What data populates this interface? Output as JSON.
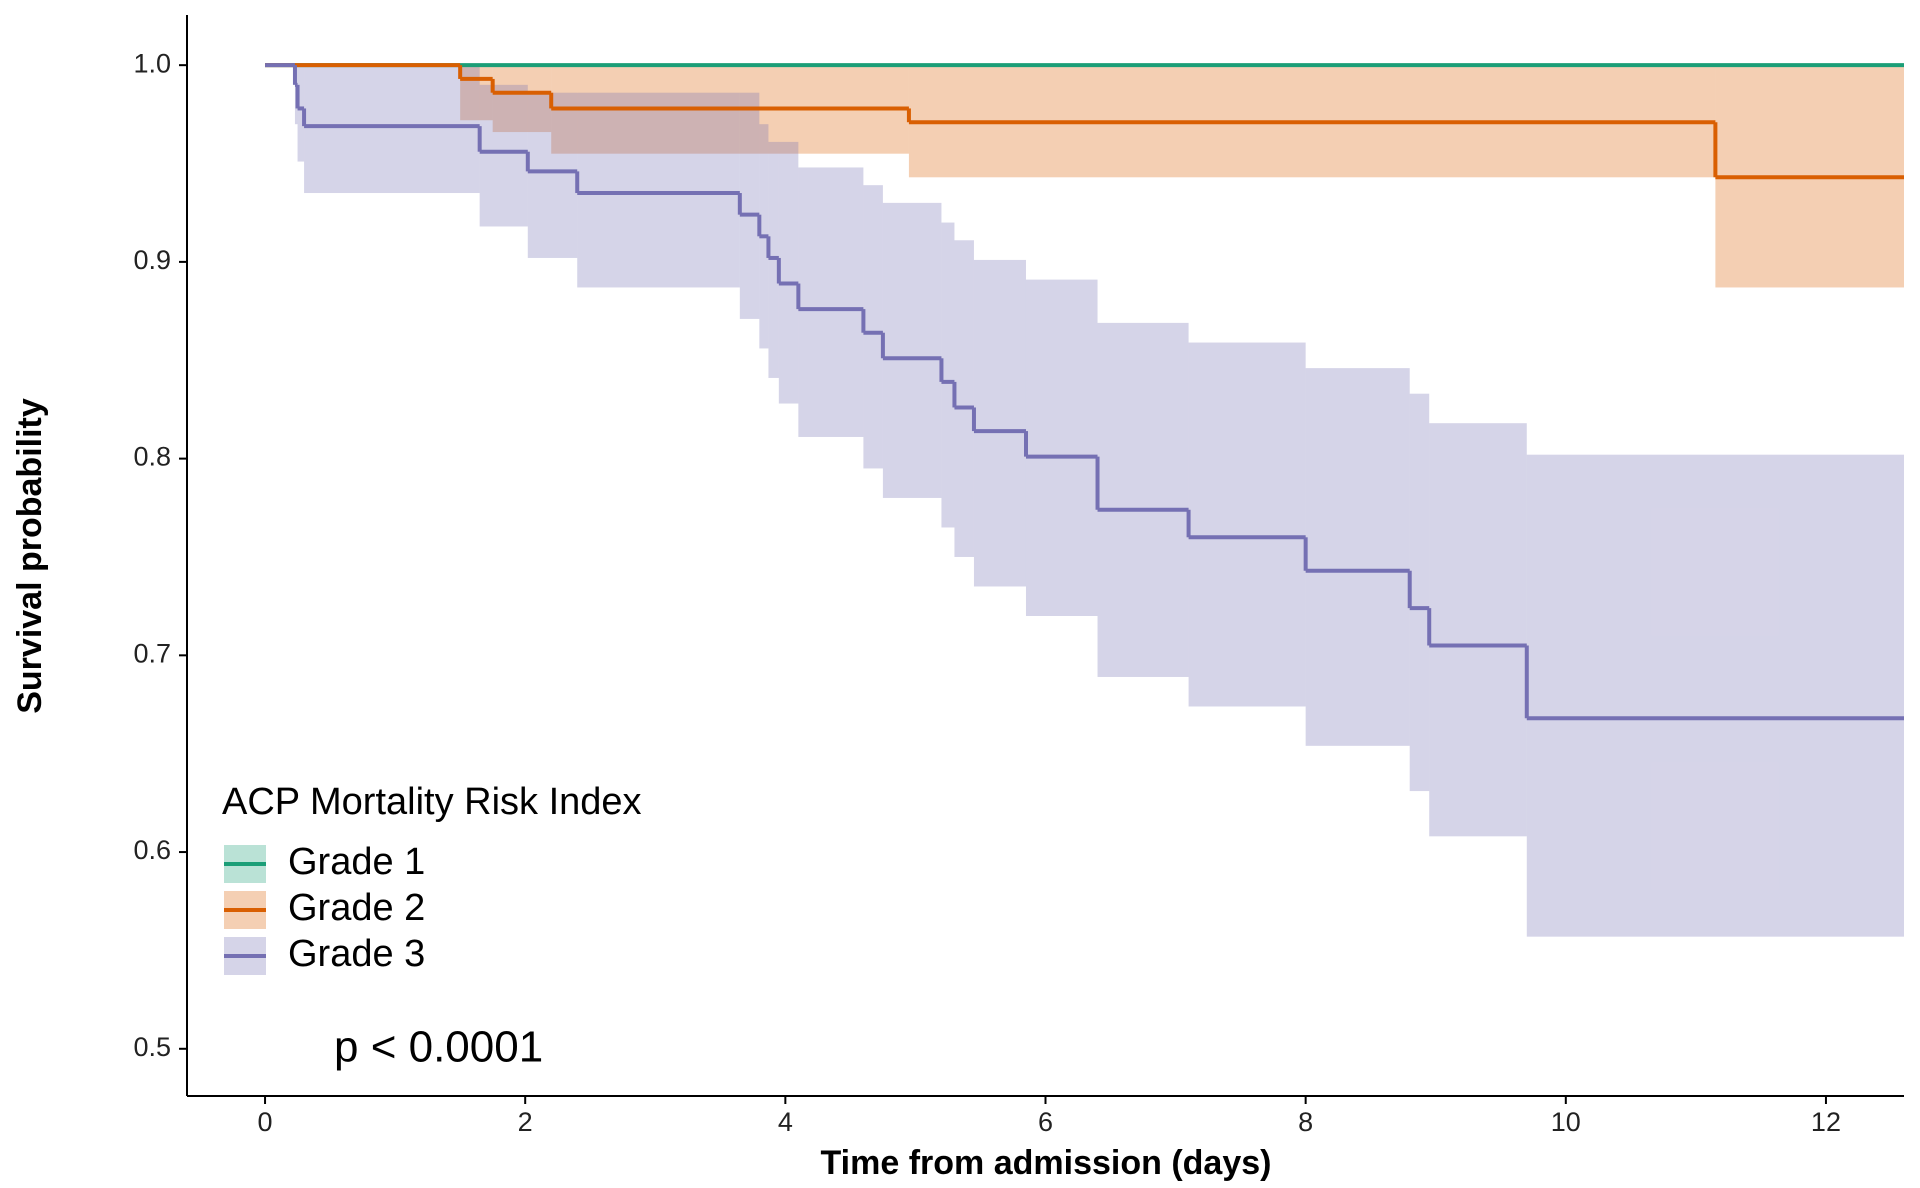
{
  "chart_data": {
    "type": "km",
    "x_label": "Time from admission (days)",
    "y_label": "Survival probability",
    "xlim": [
      -0.6,
      12.6
    ],
    "ylim": [
      0.476,
      1.0255
    ],
    "xticks": [
      0,
      2,
      4,
      6,
      8,
      10,
      12
    ],
    "yticks": [
      0.5,
      0.6,
      0.7,
      0.8,
      0.9,
      {
        "value": 1.0,
        "label": "1.0"
      }
    ],
    "legend_title": "ACP Mortality Risk Index",
    "legend": "bottom-left",
    "annotation": "p < 0.0001",
    "series": [
      {
        "name": "Grade 1",
        "color": "#1b9e77",
        "x": [
          0,
          12.6
        ],
        "values": [
          1.0,
          1.0
        ],
        "lower": [
          1.0,
          1.0
        ],
        "upper": [
          1.0,
          1.0
        ]
      },
      {
        "name": "Grade 2",
        "color": "#d95f02",
        "x": [
          0,
          1.5,
          1.75,
          2.2,
          4.95,
          11.15,
          12.6
        ],
        "values": [
          1.0,
          0.993,
          0.986,
          0.978,
          0.971,
          0.943,
          0.943
        ],
        "lower": [
          1.0,
          0.972,
          0.966,
          0.955,
          0.943,
          0.887,
          0.887
        ],
        "upper": [
          1.0,
          1.0,
          1.0,
          1.0,
          1.0,
          1.0,
          1.0
        ]
      },
      {
        "name": "Grade 3",
        "color": "#7570b3",
        "x": [
          0,
          0.23,
          0.25,
          0.3,
          1.65,
          2.02,
          2.4,
          3.65,
          3.8,
          3.87,
          3.95,
          4.1,
          4.6,
          4.75,
          5.2,
          5.3,
          5.45,
          5.85,
          6.4,
          7.1,
          8.0,
          8.8,
          8.95,
          9.7,
          12.6
        ],
        "values": [
          1.0,
          0.99,
          0.978,
          0.969,
          0.956,
          0.946,
          0.935,
          0.924,
          0.913,
          0.902,
          0.889,
          0.876,
          0.864,
          0.851,
          0.839,
          0.826,
          0.814,
          0.801,
          0.774,
          0.76,
          0.743,
          0.724,
          0.705,
          0.668,
          0.668
        ],
        "lower": [
          1.0,
          0.97,
          0.951,
          0.935,
          0.918,
          0.902,
          0.887,
          0.871,
          0.856,
          0.841,
          0.828,
          0.811,
          0.795,
          0.78,
          0.765,
          0.75,
          0.735,
          0.72,
          0.689,
          0.674,
          0.654,
          0.631,
          0.608,
          0.557,
          0.557
        ],
        "upper": [
          1.0,
          1.0,
          1.0,
          1.0,
          0.99,
          0.986,
          0.986,
          0.986,
          0.97,
          0.961,
          0.961,
          0.948,
          0.939,
          0.93,
          0.92,
          0.911,
          0.901,
          0.891,
          0.869,
          0.859,
          0.846,
          0.833,
          0.818,
          0.802,
          0.802
        ]
      }
    ]
  }
}
